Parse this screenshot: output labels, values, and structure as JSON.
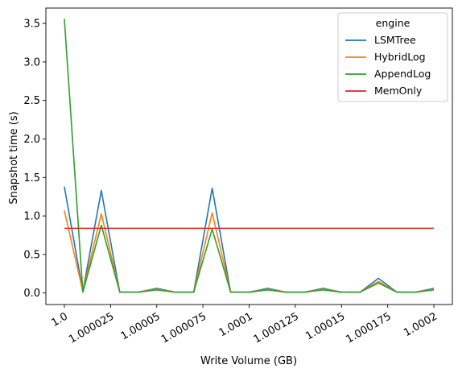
{
  "chart_data": {
    "type": "line",
    "title": "",
    "xlabel": "Write Volume (GB)",
    "ylabel": "Snapshot time (s)",
    "xlim": [
      0.99999,
      1.00021
    ],
    "ylim": [
      -0.15,
      3.7
    ],
    "x": [
      1.0,
      1.00001,
      1.00002,
      1.00003,
      1.00004,
      1.00005,
      1.00006,
      1.00007,
      1.00008,
      1.00009,
      1.0001,
      1.00011,
      1.00012,
      1.00013,
      1.00014,
      1.00015,
      1.00016,
      1.00017,
      1.00018,
      1.00019,
      1.0002
    ],
    "x_ticks": [
      {
        "value": 1.0,
        "label": "1.0"
      },
      {
        "value": 1.000025,
        "label": "1.000025"
      },
      {
        "value": 1.00005,
        "label": "1.00005"
      },
      {
        "value": 1.000075,
        "label": "1.000075"
      },
      {
        "value": 1.0001,
        "label": "1.0001"
      },
      {
        "value": 1.000125,
        "label": "1.000125"
      },
      {
        "value": 1.00015,
        "label": "1.00015"
      },
      {
        "value": 1.000175,
        "label": "1.000175"
      },
      {
        "value": 1.0002,
        "label": "1.0002"
      }
    ],
    "y_ticks": [
      {
        "value": 0.0,
        "label": "0.0"
      },
      {
        "value": 0.5,
        "label": "0.5"
      },
      {
        "value": 1.0,
        "label": "1.0"
      },
      {
        "value": 1.5,
        "label": "1.5"
      },
      {
        "value": 2.0,
        "label": "2.0"
      },
      {
        "value": 2.5,
        "label": "2.5"
      },
      {
        "value": 3.0,
        "label": "3.0"
      },
      {
        "value": 3.5,
        "label": "3.5"
      }
    ],
    "legend": {
      "title": "engine",
      "placement": "top-right"
    },
    "series": [
      {
        "name": "LSMTree",
        "color": "#1f77b4",
        "values": [
          1.38,
          0.02,
          1.33,
          0.01,
          0.01,
          0.06,
          0.01,
          0.01,
          1.36,
          0.01,
          0.01,
          0.06,
          0.01,
          0.01,
          0.06,
          0.01,
          0.01,
          0.19,
          0.01,
          0.01,
          0.06
        ]
      },
      {
        "name": "HybridLog",
        "color": "#ff7f0e",
        "values": [
          1.07,
          0.02,
          1.03,
          0.01,
          0.01,
          0.05,
          0.01,
          0.01,
          1.04,
          0.01,
          0.01,
          0.05,
          0.01,
          0.01,
          0.05,
          0.01,
          0.01,
          0.15,
          0.01,
          0.01,
          0.05
        ]
      },
      {
        "name": "AppendLog",
        "color": "#2ca02c",
        "values": [
          3.56,
          0.01,
          0.88,
          0.01,
          0.01,
          0.04,
          0.01,
          0.01,
          0.83,
          0.01,
          0.01,
          0.04,
          0.01,
          0.01,
          0.04,
          0.01,
          0.01,
          0.13,
          0.01,
          0.01,
          0.04
        ]
      },
      {
        "name": "MemOnly",
        "color": "#d62728",
        "values": [
          0.84,
          0.84,
          0.84,
          0.84,
          0.84,
          0.84,
          0.84,
          0.84,
          0.84,
          0.84,
          0.84,
          0.84,
          0.84,
          0.84,
          0.84,
          0.84,
          0.84,
          0.84,
          0.84,
          0.84,
          0.84
        ]
      }
    ]
  }
}
